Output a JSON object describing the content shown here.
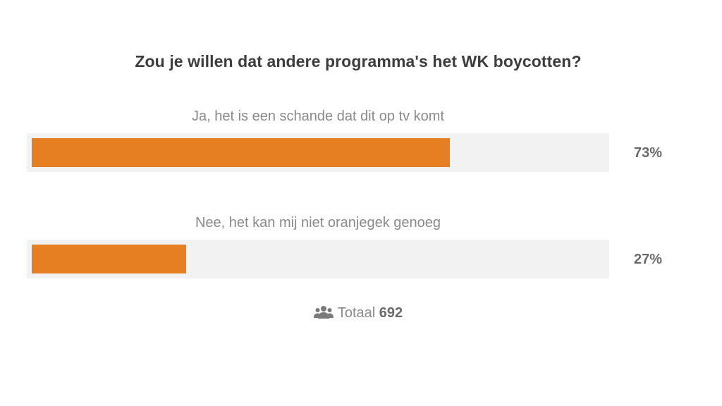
{
  "poll": {
    "question": "Zou je willen dat andere programma's het WK boycotten?",
    "accent_color": "#e67e22",
    "options": [
      {
        "label": "Ja, het is een schande dat dit op tv komt",
        "percent": 73,
        "percent_label": "73%"
      },
      {
        "label": "Nee, het kan mij niet oranjegek genoeg",
        "percent": 27,
        "percent_label": "27%"
      }
    ],
    "total": {
      "icon": "users-icon",
      "label": "Totaal",
      "count": "692"
    }
  }
}
